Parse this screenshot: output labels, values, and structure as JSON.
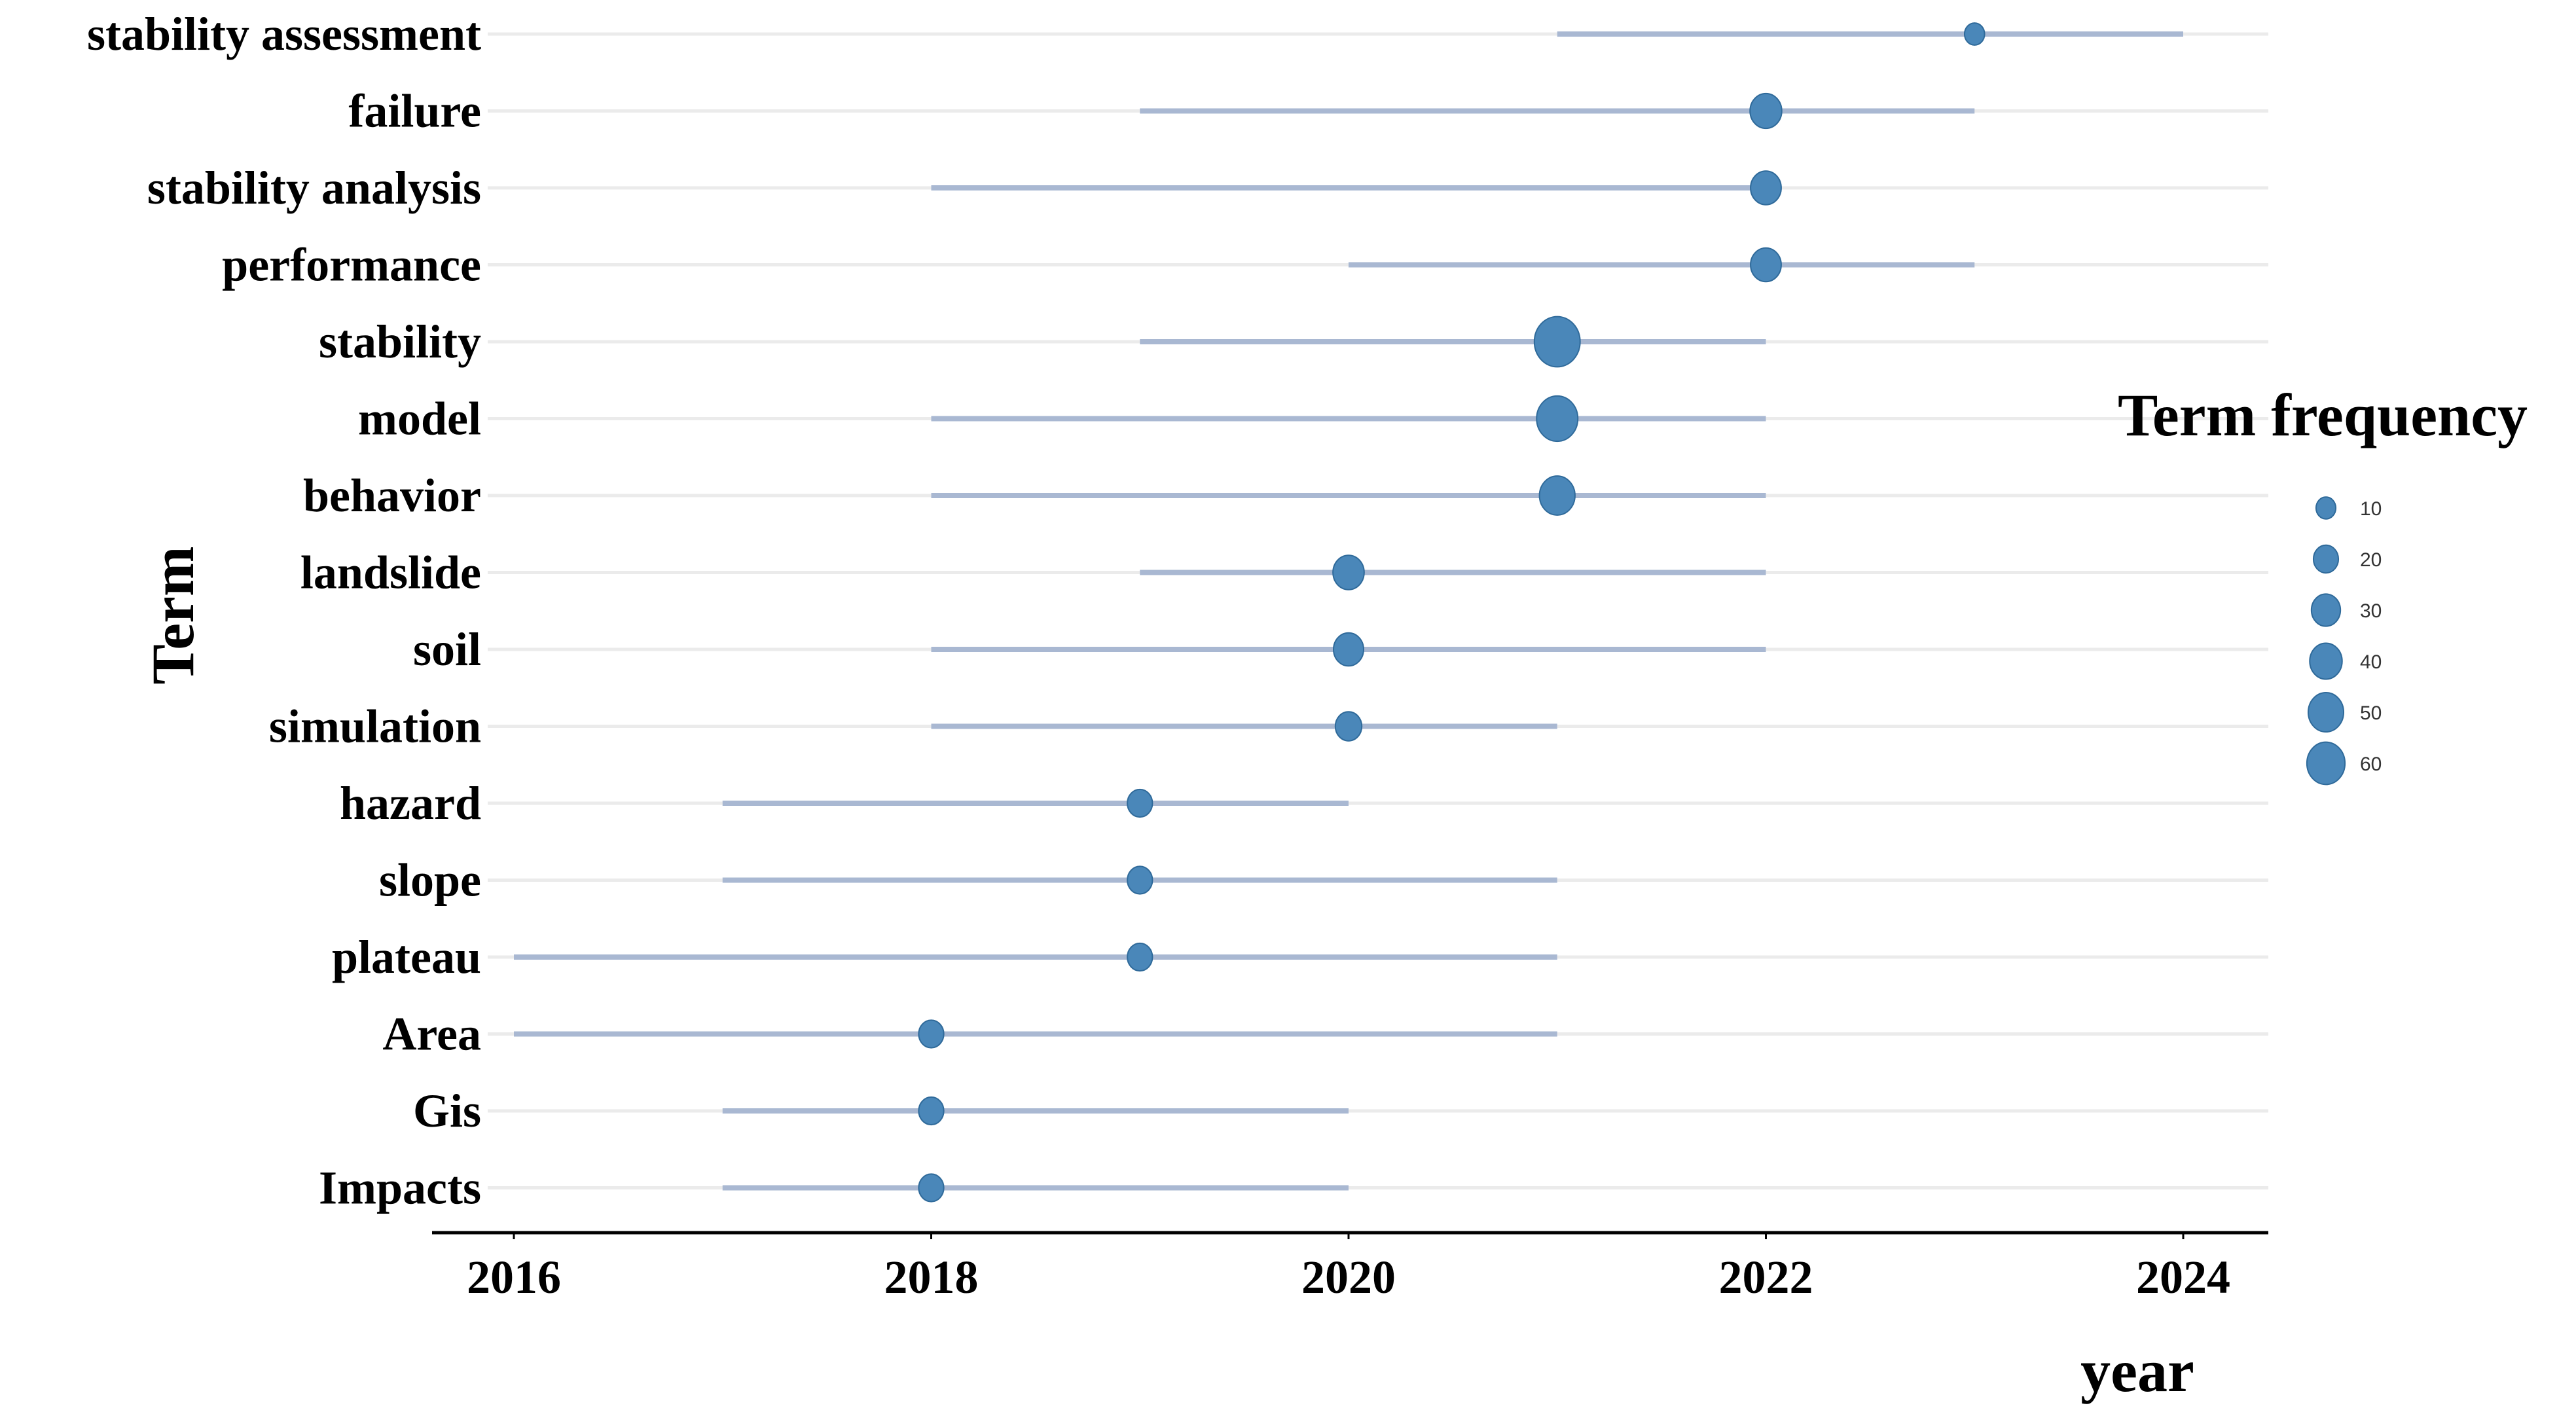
{
  "chart_data": {
    "type": "scatter",
    "xlabel": "year",
    "ylabel": "Term",
    "xlim": [
      2016,
      2024
    ],
    "x_ticks": [
      2016,
      2018,
      2020,
      2022,
      2024
    ],
    "grid": true,
    "legend_placement": "right",
    "legend_title": "Term frequency",
    "legend_sizes": [
      10,
      20,
      30,
      40,
      50,
      60
    ],
    "colors": {
      "point": "#4a87b9",
      "range": "#a9b8d2",
      "grid": "#ebebeb",
      "axis": "#000000"
    },
    "terms": [
      {
        "term": "stability assessment",
        "year_start": 2021,
        "year_q3": 2024,
        "year_median": 2023,
        "freq": 6
      },
      {
        "term": "failure",
        "year_start": 2019,
        "year_q3": 2023,
        "year_median": 2022,
        "freq": 23
      },
      {
        "term": "stability analysis",
        "year_start": 2018,
        "year_q3": 2022,
        "year_median": 2022,
        "freq": 21
      },
      {
        "term": "performance",
        "year_start": 2020,
        "year_q3": 2023,
        "year_median": 2022,
        "freq": 21
      },
      {
        "term": "stability",
        "year_start": 2019,
        "year_q3": 2022,
        "year_median": 2021,
        "freq": 58
      },
      {
        "term": "model",
        "year_start": 2018,
        "year_q3": 2022,
        "year_median": 2021,
        "freq": 45
      },
      {
        "term": "behavior",
        "year_start": 2018,
        "year_q3": 2022,
        "year_median": 2021,
        "freq": 31
      },
      {
        "term": "landslide",
        "year_start": 2019,
        "year_q3": 2022,
        "year_median": 2020,
        "freq": 22
      },
      {
        "term": "soil",
        "year_start": 2018,
        "year_q3": 2022,
        "year_median": 2020,
        "freq": 20
      },
      {
        "term": "simulation",
        "year_start": 2018,
        "year_q3": 2021,
        "year_median": 2020,
        "freq": 14
      },
      {
        "term": "hazard",
        "year_start": 2017,
        "year_q3": 2020,
        "year_median": 2019,
        "freq": 12
      },
      {
        "term": "slope",
        "year_start": 2017,
        "year_q3": 2021,
        "year_median": 2019,
        "freq": 12
      },
      {
        "term": "plateau",
        "year_start": 2016,
        "year_q3": 2021,
        "year_median": 2019,
        "freq": 12
      },
      {
        "term": "Area",
        "year_start": 2016,
        "year_q3": 2021,
        "year_median": 2018,
        "freq": 12
      },
      {
        "term": "Gis",
        "year_start": 2017,
        "year_q3": 2020,
        "year_median": 2018,
        "freq": 12
      },
      {
        "term": "Impacts",
        "year_start": 2017,
        "year_q3": 2020,
        "year_median": 2018,
        "freq": 12
      }
    ]
  }
}
